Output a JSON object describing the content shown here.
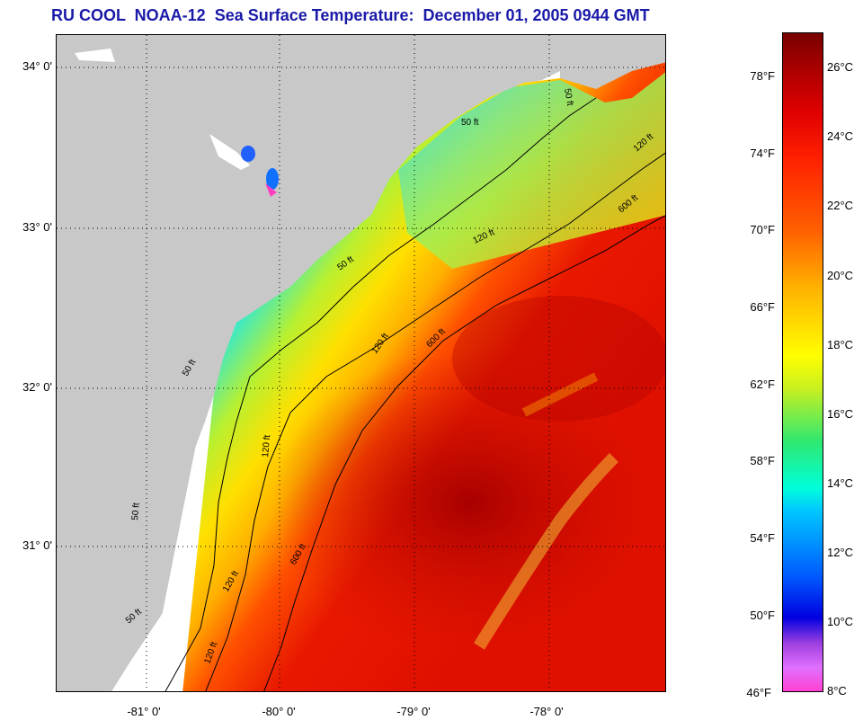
{
  "title": "RU COOL  NOAA-12  Sea Surface Temperature:  December 01, 2005 0944 GMT",
  "map": {
    "latitude_labels": [
      "34° 0'",
      "33° 0'",
      "32° 0'",
      "31° 0'"
    ],
    "longitude_labels": [
      "-81° 0'",
      "-80° 0'",
      "-79° 0'",
      "-78° 0'"
    ],
    "isobath_labels": [
      "50 ft",
      "50 ft",
      "50 ft",
      "50 ft",
      "50 ft",
      "120 ft",
      "120 ft",
      "120 ft",
      "120 ft",
      "120 ft",
      "600 ft",
      "600 ft",
      "600 ft",
      "50 ft",
      "120 ft"
    ],
    "colors": {
      "land": "#c8c8c8",
      "no_data": "#ffffff",
      "cold_coast": "#20d0ff",
      "mid_shelf": "#ffe000",
      "gulf_stream": "#d01000"
    }
  },
  "colorbar": {
    "fahrenheit_labels": [
      "78°F",
      "74°F",
      "70°F",
      "66°F",
      "62°F",
      "58°F",
      "54°F",
      "50°F",
      "46°F"
    ],
    "celsius_labels": [
      "26°C",
      "24°C",
      "22°C",
      "20°C",
      "18°C",
      "16°C",
      "14°C",
      "12°C",
      "10°C",
      "8°C"
    ]
  }
}
